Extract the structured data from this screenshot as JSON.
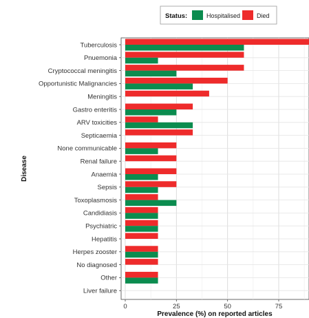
{
  "chart_data": {
    "type": "bar",
    "orientation": "horizontal",
    "categories": [
      "Tuberculosis",
      "Pnuemonia",
      "Cryptococcal meningitis",
      "Opportunistic Malignancies",
      "Meningitis",
      "Gastro enteritis",
      "ARV toxicities",
      "Septicaemia",
      "None communicable",
      "Renal failure",
      "Anaemia",
      "Sepsis",
      "Toxoplasmosis",
      "Candidiasis",
      "Psychiatric",
      "Hepatitis",
      "Herpes zooster",
      "No diagnosed",
      "Other",
      "Liver failure"
    ],
    "series": [
      {
        "name": "Died",
        "color": "#ee2b2b",
        "values": [
          91,
          58,
          58,
          50,
          41,
          33,
          16,
          33,
          25,
          25,
          25,
          25,
          16,
          16,
          16,
          16,
          16,
          16,
          16,
          0
        ]
      },
      {
        "name": "Hospitalised",
        "color": "#0b8c4f",
        "values": [
          58,
          16,
          25,
          33,
          0,
          25,
          33,
          0,
          16,
          0,
          16,
          16,
          25,
          16,
          16,
          0,
          16,
          0,
          16,
          0
        ]
      }
    ],
    "xlabel": "Prevalence (%) on reported articles",
    "ylabel": "Disease",
    "xlim": [
      0,
      91
    ],
    "xticks": [
      0,
      25,
      50,
      75
    ],
    "grid": true,
    "legend": {
      "title": "Status:",
      "position": "top",
      "order": [
        "Hospitalised",
        "Died"
      ]
    }
  }
}
